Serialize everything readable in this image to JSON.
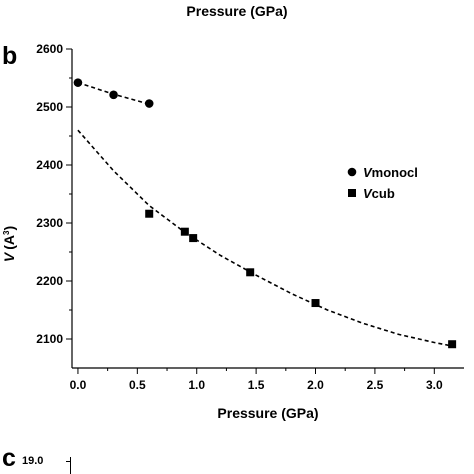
{
  "top_label": "Pressure (GPa)",
  "panel_b_letter": "b",
  "panel_c_letter": "c",
  "panel_c_first_tick": "19.0",
  "chart_data": {
    "type": "scatter",
    "title": "",
    "xlabel": "Pressure (GPa)",
    "ylabel_main": "V",
    "ylabel_unit": "(A",
    "ylabel_sup": "3",
    "ylabel_close": ")",
    "xlim": [
      -0.05,
      3.25
    ],
    "ylim": [
      2050,
      2600
    ],
    "xticks": [
      0.0,
      0.5,
      1.0,
      1.5,
      2.0,
      2.5,
      3.0
    ],
    "xtick_labels": [
      "0.0",
      "0.5",
      "1.0",
      "1.5",
      "2.0",
      "2.5",
      "3.0"
    ],
    "yticks": [
      2100,
      2200,
      2300,
      2400,
      2500,
      2600
    ],
    "ytick_labels": [
      "2100",
      "2200",
      "2300",
      "2400",
      "2500",
      "2600"
    ],
    "grid": false,
    "legend_position": "right",
    "series": [
      {
        "name": "Vmonocl",
        "legend_italic": "V",
        "legend_rest": "monocl",
        "marker": "circle",
        "points": [
          [
            0.0,
            2542
          ],
          [
            0.3,
            2521
          ],
          [
            0.6,
            2506
          ]
        ],
        "fit": [
          [
            0.0,
            2542
          ],
          [
            0.3,
            2522
          ],
          [
            0.6,
            2505
          ]
        ]
      },
      {
        "name": "Vcub",
        "legend_italic": "V",
        "legend_rest": "cub",
        "marker": "square",
        "points": [
          [
            0.6,
            2316
          ],
          [
            0.9,
            2285
          ],
          [
            0.97,
            2274
          ],
          [
            1.45,
            2215
          ],
          [
            2.0,
            2162
          ],
          [
            3.15,
            2091
          ]
        ],
        "fit": [
          [
            0.0,
            2460
          ],
          [
            0.3,
            2390
          ],
          [
            0.6,
            2330
          ],
          [
            0.9,
            2284
          ],
          [
            1.2,
            2244
          ],
          [
            1.5,
            2210
          ],
          [
            1.8,
            2178
          ],
          [
            2.1,
            2150
          ],
          [
            2.4,
            2127
          ],
          [
            2.7,
            2108
          ],
          [
            3.0,
            2094
          ],
          [
            3.15,
            2088
          ]
        ]
      }
    ]
  }
}
